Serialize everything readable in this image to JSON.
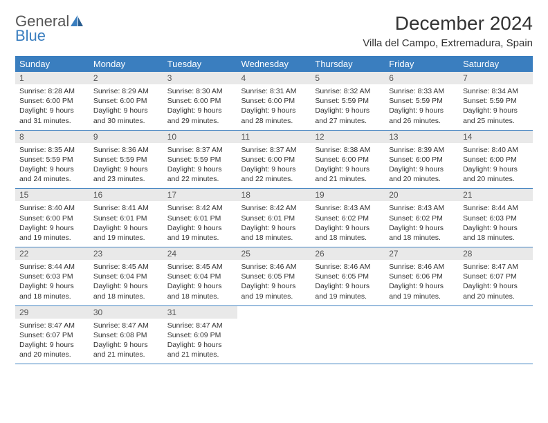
{
  "logo": {
    "general": "General",
    "blue": "Blue"
  },
  "title": "December 2024",
  "location": "Villa del Campo, Extremadura, Spain",
  "colors": {
    "accent": "#3a7ebf",
    "header_bg": "#3a7ebf",
    "daynum_bg": "#e9e9e9"
  },
  "weekdays": [
    "Sunday",
    "Monday",
    "Tuesday",
    "Wednesday",
    "Thursday",
    "Friday",
    "Saturday"
  ],
  "days": [
    {
      "n": 1,
      "sunrise": "8:28 AM",
      "sunset": "6:00 PM",
      "daylight": "9 hours and 31 minutes."
    },
    {
      "n": 2,
      "sunrise": "8:29 AM",
      "sunset": "6:00 PM",
      "daylight": "9 hours and 30 minutes."
    },
    {
      "n": 3,
      "sunrise": "8:30 AM",
      "sunset": "6:00 PM",
      "daylight": "9 hours and 29 minutes."
    },
    {
      "n": 4,
      "sunrise": "8:31 AM",
      "sunset": "6:00 PM",
      "daylight": "9 hours and 28 minutes."
    },
    {
      "n": 5,
      "sunrise": "8:32 AM",
      "sunset": "5:59 PM",
      "daylight": "9 hours and 27 minutes."
    },
    {
      "n": 6,
      "sunrise": "8:33 AM",
      "sunset": "5:59 PM",
      "daylight": "9 hours and 26 minutes."
    },
    {
      "n": 7,
      "sunrise": "8:34 AM",
      "sunset": "5:59 PM",
      "daylight": "9 hours and 25 minutes."
    },
    {
      "n": 8,
      "sunrise": "8:35 AM",
      "sunset": "5:59 PM",
      "daylight": "9 hours and 24 minutes."
    },
    {
      "n": 9,
      "sunrise": "8:36 AM",
      "sunset": "5:59 PM",
      "daylight": "9 hours and 23 minutes."
    },
    {
      "n": 10,
      "sunrise": "8:37 AM",
      "sunset": "5:59 PM",
      "daylight": "9 hours and 22 minutes."
    },
    {
      "n": 11,
      "sunrise": "8:37 AM",
      "sunset": "6:00 PM",
      "daylight": "9 hours and 22 minutes."
    },
    {
      "n": 12,
      "sunrise": "8:38 AM",
      "sunset": "6:00 PM",
      "daylight": "9 hours and 21 minutes."
    },
    {
      "n": 13,
      "sunrise": "8:39 AM",
      "sunset": "6:00 PM",
      "daylight": "9 hours and 20 minutes."
    },
    {
      "n": 14,
      "sunrise": "8:40 AM",
      "sunset": "6:00 PM",
      "daylight": "9 hours and 20 minutes."
    },
    {
      "n": 15,
      "sunrise": "8:40 AM",
      "sunset": "6:00 PM",
      "daylight": "9 hours and 19 minutes."
    },
    {
      "n": 16,
      "sunrise": "8:41 AM",
      "sunset": "6:01 PM",
      "daylight": "9 hours and 19 minutes."
    },
    {
      "n": 17,
      "sunrise": "8:42 AM",
      "sunset": "6:01 PM",
      "daylight": "9 hours and 19 minutes."
    },
    {
      "n": 18,
      "sunrise": "8:42 AM",
      "sunset": "6:01 PM",
      "daylight": "9 hours and 18 minutes."
    },
    {
      "n": 19,
      "sunrise": "8:43 AM",
      "sunset": "6:02 PM",
      "daylight": "9 hours and 18 minutes."
    },
    {
      "n": 20,
      "sunrise": "8:43 AM",
      "sunset": "6:02 PM",
      "daylight": "9 hours and 18 minutes."
    },
    {
      "n": 21,
      "sunrise": "8:44 AM",
      "sunset": "6:03 PM",
      "daylight": "9 hours and 18 minutes."
    },
    {
      "n": 22,
      "sunrise": "8:44 AM",
      "sunset": "6:03 PM",
      "daylight": "9 hours and 18 minutes."
    },
    {
      "n": 23,
      "sunrise": "8:45 AM",
      "sunset": "6:04 PM",
      "daylight": "9 hours and 18 minutes."
    },
    {
      "n": 24,
      "sunrise": "8:45 AM",
      "sunset": "6:04 PM",
      "daylight": "9 hours and 18 minutes."
    },
    {
      "n": 25,
      "sunrise": "8:46 AM",
      "sunset": "6:05 PM",
      "daylight": "9 hours and 19 minutes."
    },
    {
      "n": 26,
      "sunrise": "8:46 AM",
      "sunset": "6:05 PM",
      "daylight": "9 hours and 19 minutes."
    },
    {
      "n": 27,
      "sunrise": "8:46 AM",
      "sunset": "6:06 PM",
      "daylight": "9 hours and 19 minutes."
    },
    {
      "n": 28,
      "sunrise": "8:47 AM",
      "sunset": "6:07 PM",
      "daylight": "9 hours and 20 minutes."
    },
    {
      "n": 29,
      "sunrise": "8:47 AM",
      "sunset": "6:07 PM",
      "daylight": "9 hours and 20 minutes."
    },
    {
      "n": 30,
      "sunrise": "8:47 AM",
      "sunset": "6:08 PM",
      "daylight": "9 hours and 21 minutes."
    },
    {
      "n": 31,
      "sunrise": "8:47 AM",
      "sunset": "6:09 PM",
      "daylight": "9 hours and 21 minutes."
    }
  ],
  "first_weekday_index": 0,
  "labels": {
    "sunrise": "Sunrise:",
    "sunset": "Sunset:",
    "daylight": "Daylight:"
  }
}
